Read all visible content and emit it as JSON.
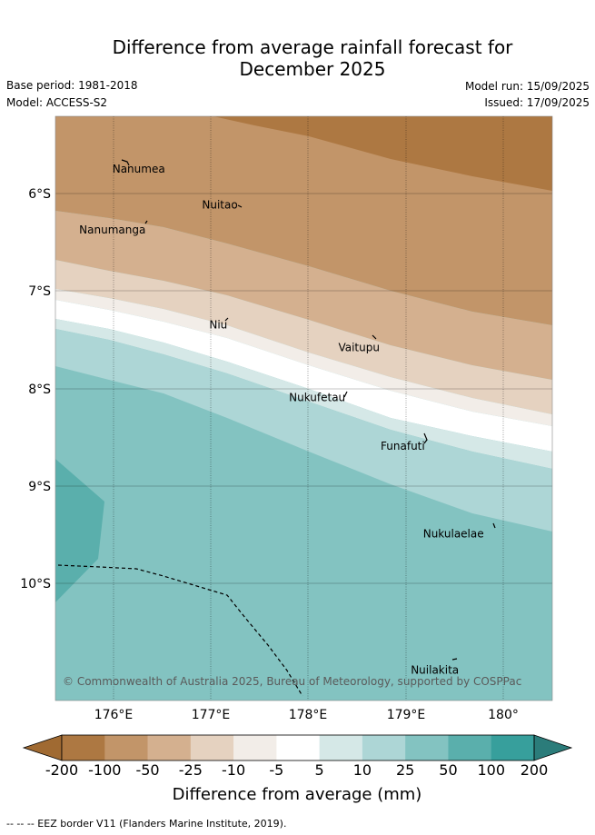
{
  "title_line1": "Difference from average rainfall forecast for",
  "title_line2": "December 2025",
  "base_period": "Base period: 1981-2018",
  "model": "Model: ACCESS-S2",
  "model_run": "Model run: 15/09/2025",
  "issued": "Issued: 17/09/2025",
  "copyright": "© Commonwealth of Australia 2025, Bureau of Meteorology, supported by COSPPac",
  "lon_ticks": [
    "176°E",
    "177°E",
    "178°E",
    "179°E",
    "180°"
  ],
  "lat_ticks": [
    "6°S",
    "7°S",
    "8°S",
    "9°S",
    "10°S"
  ],
  "places": [
    {
      "name": "Nanumea",
      "lon": 176.1,
      "lat": -5.69
    },
    {
      "name": "Nuitao",
      "lon": 177.3,
      "lat": -6.1
    },
    {
      "name": "Nanumanga",
      "lon": 176.3,
      "lat": -6.29
    },
    {
      "name": "Niu",
      "lon": 177.16,
      "lat": -7.3
    },
    {
      "name": "Vaitupu",
      "lon": 178.7,
      "lat": -7.49
    },
    {
      "name": "Nukufetau",
      "lon": 178.38,
      "lat": -8.03
    },
    {
      "name": "Funafuti",
      "lon": 179.2,
      "lat": -8.52
    },
    {
      "name": "Nukulaelae",
      "lon": 179.85,
      "lat": -9.38
    },
    {
      "name": "Nuilakita",
      "lon": 179.5,
      "lat": -10.78
    }
  ],
  "colorbar": {
    "labels": [
      "-200",
      "-100",
      "-50",
      "-25",
      "-10",
      "-5",
      "5",
      "10",
      "25",
      "50",
      "100",
      "200"
    ],
    "colors": [
      "#a06a32",
      "#ad7842",
      "#c29569",
      "#d4b08f",
      "#e5d2c0",
      "#f2ede8",
      "#ffffff",
      "#d5e8e7",
      "#add6d6",
      "#83c3c1",
      "#5aafac",
      "#379f9c",
      "#2b7c7a"
    ],
    "title": "Difference from average (mm)"
  },
  "footnote": "-- -- -- EEZ border V11 (Flanders Marine Institute, 2019).",
  "map_extent": {
    "lon": [
      175.45,
      180.55
    ],
    "lat": [
      -5.2,
      -11.2
    ]
  }
}
